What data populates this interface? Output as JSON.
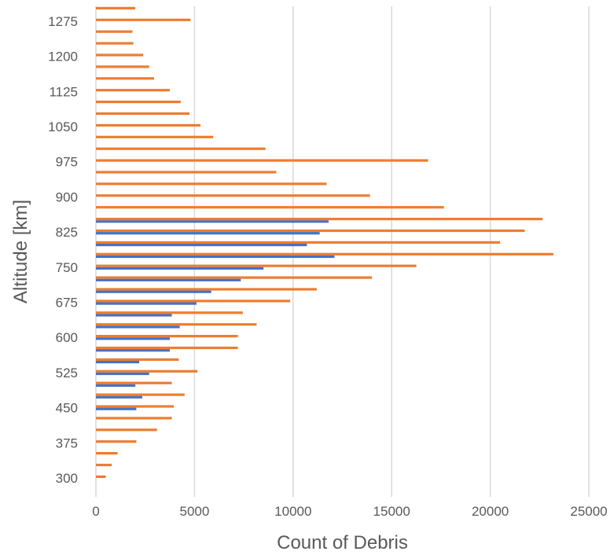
{
  "chart_data": {
    "type": "bar",
    "orientation": "horizontal",
    "xlabel": "Count of Debris",
    "ylabel": "Altitude [km]",
    "xlim": [
      0,
      25000
    ],
    "x_ticks": [
      0,
      5000,
      10000,
      15000,
      20000,
      25000
    ],
    "y_ticks": [
      300,
      375,
      450,
      525,
      600,
      675,
      750,
      825,
      900,
      975,
      1050,
      1125,
      1200,
      1275
    ],
    "grid": "vertical",
    "legend": "none",
    "categories": [
      300,
      325,
      350,
      375,
      400,
      425,
      450,
      475,
      500,
      525,
      550,
      575,
      600,
      625,
      650,
      675,
      700,
      725,
      750,
      775,
      800,
      825,
      850,
      875,
      900,
      925,
      950,
      975,
      1000,
      1025,
      1050,
      1075,
      1100,
      1125,
      1150,
      1175,
      1200,
      1225,
      1250,
      1275,
      1300
    ],
    "series": [
      {
        "color": "#ed7d31",
        "values": [
          500,
          800,
          1100,
          2050,
          3100,
          3850,
          3950,
          4500,
          3850,
          5150,
          4200,
          7200,
          7200,
          8150,
          7450,
          9850,
          11200,
          14000,
          16250,
          23200,
          20500,
          21750,
          22650,
          17650,
          13900,
          11700,
          9150,
          16850,
          8600,
          5950,
          5300,
          4750,
          4300,
          3750,
          2950,
          2700,
          2400,
          1900,
          1850,
          4800,
          2000
        ]
      },
      {
        "color": "#4472c4",
        "values": [
          null,
          null,
          null,
          null,
          null,
          null,
          2050,
          2350,
          2000,
          2700,
          2200,
          3750,
          3750,
          4250,
          3850,
          5100,
          5850,
          7350,
          8500,
          12100,
          10700,
          11350,
          11800,
          null,
          null,
          null,
          null,
          null,
          null,
          null,
          null,
          null,
          null,
          null,
          null,
          null,
          null,
          null,
          null,
          null,
          null
        ]
      }
    ]
  }
}
